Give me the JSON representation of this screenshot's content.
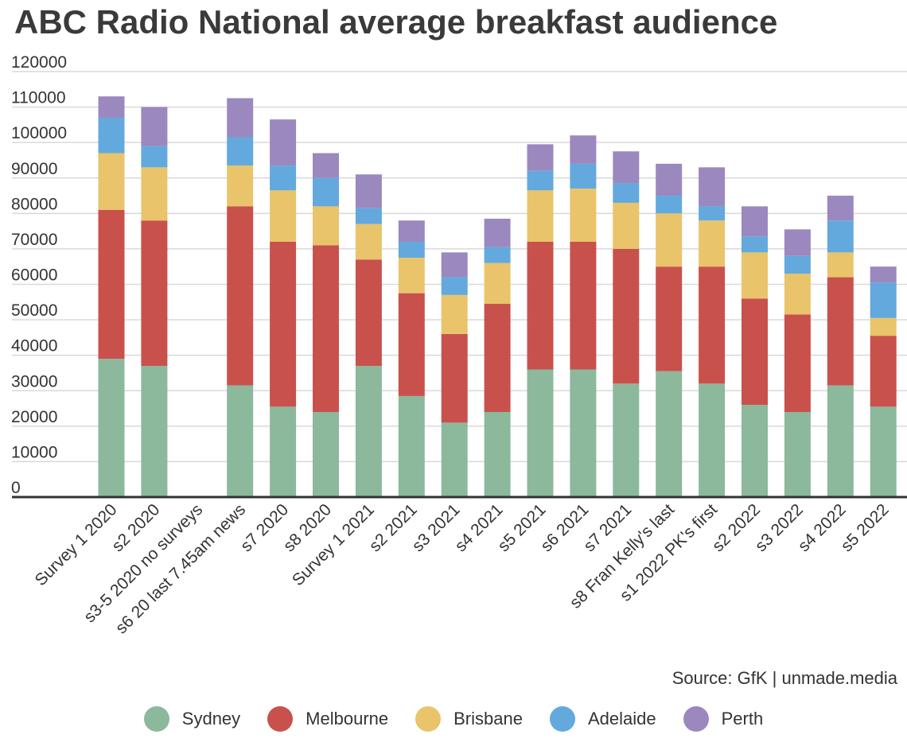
{
  "chart_data": {
    "type": "bar",
    "stacked": true,
    "title": "ABC Radio National average breakfast audience",
    "source": "Source: GfK | unmade.media",
    "ylim": [
      0,
      120000
    ],
    "yticks": [
      0,
      10000,
      20000,
      30000,
      40000,
      50000,
      60000,
      70000,
      80000,
      90000,
      100000,
      110000,
      120000
    ],
    "grid": true,
    "legend_position": "bottom",
    "categories": [
      "Survey 1 2020",
      "s2 2020",
      "s3-5 2020 no surveys",
      "s6 20 last 7.45am news",
      "s7 2020",
      "s8 2020",
      "Survey 1 2021",
      "s2 2021",
      "s3 2021",
      "s4 2021",
      "s5 2021",
      "s6 2021",
      "s7 2021",
      "s8 Fran Kelly's last",
      "s1 2022 PK's first",
      "s2 2022",
      "s3 2022",
      "s4 2022",
      "s5 2022"
    ],
    "series": [
      {
        "name": "Sydney",
        "color": "#8cb89c",
        "values": [
          39000,
          37000,
          0,
          31500,
          25500,
          24000,
          37000,
          28500,
          21000,
          24000,
          36000,
          36000,
          32000,
          35500,
          32000,
          26000,
          24000,
          31500,
          25500
        ]
      },
      {
        "name": "Melbourne",
        "color": "#c9514c",
        "values": [
          42000,
          41000,
          0,
          50500,
          46500,
          47000,
          30000,
          29000,
          25000,
          30500,
          36000,
          36000,
          38000,
          29500,
          33000,
          30000,
          27500,
          30500,
          20000
        ]
      },
      {
        "name": "Brisbane",
        "color": "#e9c46a",
        "values": [
          16000,
          15000,
          0,
          11500,
          14500,
          11000,
          10000,
          10000,
          11000,
          11500,
          14500,
          15000,
          13000,
          15000,
          13000,
          13000,
          11500,
          7000,
          5000
        ]
      },
      {
        "name": "Adelaide",
        "color": "#63a9dd",
        "values": [
          10000,
          6000,
          0,
          8000,
          7000,
          8000,
          4500,
          4500,
          5000,
          4500,
          5500,
          7000,
          5500,
          5000,
          4000,
          4500,
          5000,
          9000,
          10000
        ]
      },
      {
        "name": "Perth",
        "color": "#9b88bf",
        "values": [
          6000,
          11000,
          0,
          11000,
          13000,
          7000,
          9500,
          6000,
          7000,
          8000,
          7500,
          8000,
          9000,
          9000,
          11000,
          8500,
          7500,
          7000,
          4500
        ]
      }
    ]
  }
}
